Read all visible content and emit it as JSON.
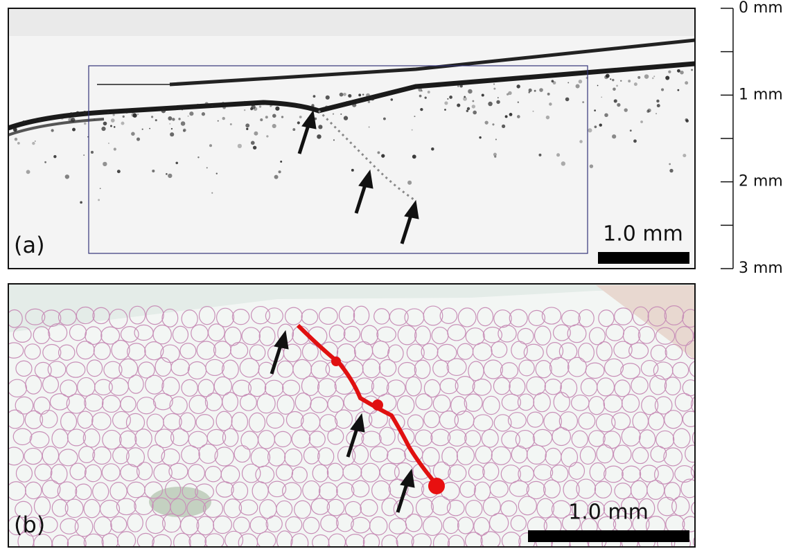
{
  "panel_a": {
    "label": "(a)",
    "scale_bar": "1.0 mm"
  },
  "panel_b": {
    "label": "(b)",
    "scale_bar": "1.0 mm"
  },
  "depth_scale": {
    "labels": [
      "0 mm",
      "1 mm",
      "2 mm",
      "3 mm"
    ]
  }
}
